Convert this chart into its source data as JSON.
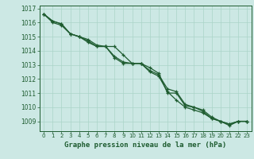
{
  "xlabel": "Graphe pression niveau de la mer (hPa)",
  "xlim": [
    -0.5,
    23.5
  ],
  "ylim": [
    1008.3,
    1017.2
  ],
  "yticks": [
    1009,
    1010,
    1011,
    1012,
    1013,
    1014,
    1015,
    1016,
    1017
  ],
  "xticks": [
    0,
    1,
    2,
    3,
    4,
    5,
    6,
    7,
    8,
    9,
    10,
    11,
    12,
    13,
    14,
    15,
    16,
    17,
    18,
    19,
    20,
    21,
    22,
    23
  ],
  "bg_color": "#cce8e4",
  "grid_color": "#aad4c8",
  "line_color": "#1e5c30",
  "text_color": "#1e5c30",
  "series1": [
    1016.6,
    1016.1,
    1015.9,
    1015.2,
    1015.0,
    1014.6,
    1014.3,
    1014.3,
    1014.3,
    1013.7,
    1013.1,
    1013.1,
    1012.8,
    1012.4,
    1011.0,
    1011.0,
    1010.1,
    1010.0,
    1009.8,
    1009.3,
    1009.0,
    1008.8,
    1009.0,
    1009.0
  ],
  "series2": [
    1016.6,
    1016.1,
    1015.9,
    1015.2,
    1015.0,
    1014.8,
    1014.4,
    1014.3,
    1013.6,
    1013.2,
    1013.1,
    1013.1,
    1012.6,
    1012.3,
    1011.3,
    1011.1,
    1010.2,
    1010.0,
    1009.7,
    1009.2,
    1009.0,
    1008.8,
    1009.0,
    1009.0
  ],
  "series3": [
    1016.6,
    1016.0,
    1015.8,
    1015.2,
    1015.0,
    1014.7,
    1014.3,
    1014.3,
    1013.5,
    1013.1,
    1013.1,
    1013.1,
    1012.5,
    1012.2,
    1011.1,
    1010.5,
    1010.0,
    1009.8,
    1009.6,
    1009.2,
    1009.0,
    1008.7,
    1009.0,
    1009.0
  ]
}
